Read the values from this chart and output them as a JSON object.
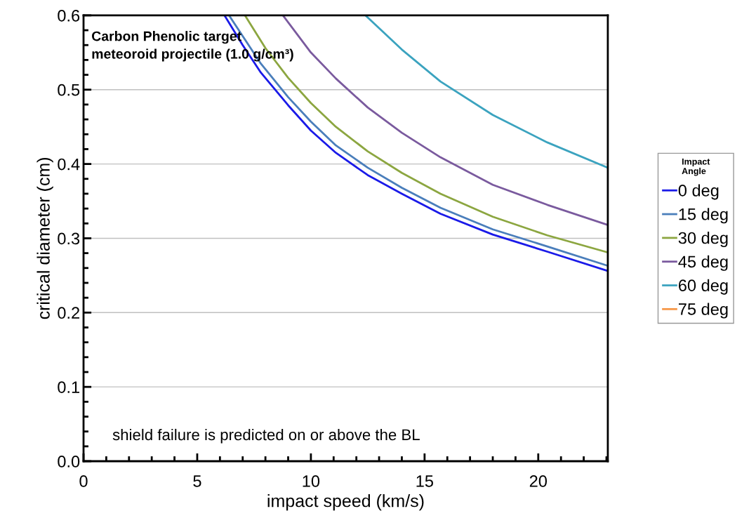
{
  "chart_data": {
    "type": "line",
    "xlabel": "impact speed (km/s)",
    "ylabel": "critical diameter (cm)",
    "legend_title": "Impact\nAngle",
    "xlim": [
      0,
      23.06
    ],
    "xticks": [
      0,
      5,
      10,
      15,
      20
    ],
    "ylim": [
      0,
      0.6
    ],
    "yticks": [
      {
        "value": 0,
        "label": "0.0"
      },
      0.1,
      0.2,
      0.3,
      0.4,
      0.5,
      0.6
    ],
    "grid": "y",
    "legend": "right",
    "marker": "none",
    "line_style": "solid",
    "annotations": [
      "Carbon Phenolic target\nmeteoroid projectile (1.0 g/cm³)",
      "shield failure is predicted on or above the BL"
    ],
    "series": [
      {
        "name": "0 deg",
        "color": "#1a1ae8",
        "x": [
          6.2,
          7.0,
          7.8,
          9.0,
          10,
          11.1,
          12.5,
          14,
          15.7,
          18,
          20.4,
          23.06
        ],
        "values": [
          0.6,
          0.56,
          0.523,
          0.479,
          0.445,
          0.415,
          0.385,
          0.36,
          0.333,
          0.305,
          0.282,
          0.256
        ]
      },
      {
        "name": "15 deg",
        "color": "#4a7ebb",
        "x": [
          6.4,
          7.8,
          9,
          10,
          11.1,
          12.5,
          14,
          15.7,
          18,
          20.4,
          23.06
        ],
        "values": [
          0.6,
          0.535,
          0.49,
          0.457,
          0.425,
          0.395,
          0.368,
          0.341,
          0.312,
          0.289,
          0.263
        ]
      },
      {
        "name": "30 deg",
        "color": "#8ca640",
        "x": [
          7.1,
          8,
          9,
          10,
          11.1,
          12.5,
          14,
          15.7,
          18,
          20.4,
          23.06
        ],
        "values": [
          0.6,
          0.556,
          0.516,
          0.482,
          0.45,
          0.417,
          0.388,
          0.36,
          0.329,
          0.304,
          0.281
        ]
      },
      {
        "name": "45 deg",
        "color": "#7a5a9e",
        "x": [
          8.77,
          10,
          11.1,
          12.5,
          14,
          15.7,
          18,
          20.4,
          23.06
        ],
        "values": [
          0.6,
          0.55,
          0.515,
          0.476,
          0.442,
          0.409,
          0.372,
          0.345,
          0.318
        ]
      },
      {
        "name": "60 deg",
        "color": "#3ba3bf",
        "x": [
          12.4,
          14,
          15.7,
          18,
          20.4,
          23.06
        ],
        "values": [
          0.6,
          0.554,
          0.511,
          0.466,
          0.429,
          0.395
        ]
      },
      {
        "name": "75 deg",
        "color": "#f79646"
      }
    ]
  }
}
